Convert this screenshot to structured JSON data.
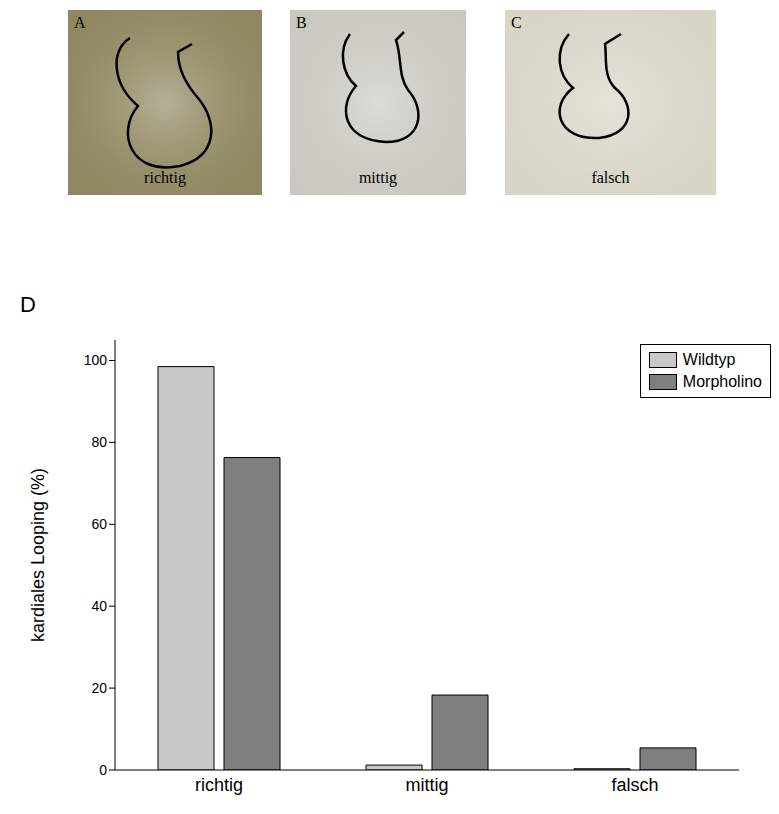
{
  "panels": [
    {
      "letter": "A",
      "label": "richtig"
    },
    {
      "letter": "B",
      "label": "mittig"
    },
    {
      "letter": "C",
      "label": "falsch"
    }
  ],
  "chart_data": {
    "panel": "D",
    "type": "bar",
    "categories": [
      "richtig",
      "mittig",
      "falsch"
    ],
    "series": [
      {
        "name": "Wildtyp",
        "color": "#c8c8c8",
        "values": [
          98.5,
          1.2,
          0.3
        ]
      },
      {
        "name": "Morpholino",
        "color": "#7f7f7f",
        "values": [
          76.3,
          18.3,
          5.4
        ]
      }
    ],
    "y_label": "kardiales Looping (%)",
    "ylim": [
      0,
      105
    ],
    "yticks": [
      0,
      20,
      40,
      60,
      80,
      100
    ],
    "grid": false,
    "legend": "top-right"
  }
}
